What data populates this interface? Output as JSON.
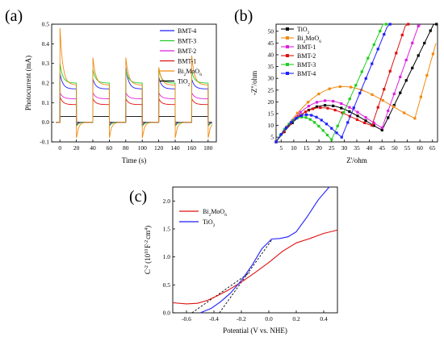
{
  "chart_data": [
    {
      "id": "a",
      "panel_label": "(a)",
      "type": "line",
      "xlabel": "Time (s)",
      "ylabel": "Photocurrent (mA)",
      "xlim": [
        -10,
        190
      ],
      "ylim": [
        -0.1,
        0.5
      ],
      "xticks": [
        0,
        20,
        40,
        60,
        80,
        100,
        120,
        140,
        160,
        180
      ],
      "yticks": [
        -0.1,
        0.0,
        0.1,
        0.2,
        0.3,
        0.4,
        0.5
      ],
      "ytick_labels": [
        "-0.1",
        "0.0",
        "0.1",
        "0.2",
        "0.3",
        "0.4",
        "0.5"
      ],
      "legend_position": "top-right",
      "on_intervals": [
        [
          0,
          20
        ],
        [
          40,
          60
        ],
        [
          80,
          100
        ],
        [
          120,
          140
        ],
        [
          160,
          180
        ]
      ],
      "series": [
        {
          "name": "BMT-4",
          "color": "#1f1fff",
          "steady": 0.17,
          "spike": [
            0.25,
            0.22,
            0.28,
            0.23,
            0.22
          ],
          "off_dip": -0.015
        },
        {
          "name": "BMT-3",
          "color": "#22cc22",
          "steady": 0.2,
          "spike": [
            0.3,
            0.27,
            0.27,
            0.27,
            0.26
          ],
          "off_dip": -0.02
        },
        {
          "name": "BMT-2",
          "color": "#dd22dd",
          "steady": 0.12,
          "spike": [
            0.15,
            0.15,
            0.15,
            0.15,
            0.15
          ],
          "off_dip": -0.01
        },
        {
          "name": "BMT-1",
          "color": "#dd1111",
          "steady": 0.09,
          "spike": [
            0.13,
            0.12,
            0.12,
            0.12,
            0.12
          ],
          "off_dip": -0.01
        },
        {
          "name": "Bi2MoO6",
          "legend_main": "Bi",
          "legend_sub1": "2",
          "legend_mid": "MoO",
          "legend_sub2": "6",
          "color": "#f08a12",
          "steady": 0.19,
          "spike": [
            0.48,
            0.33,
            0.33,
            0.28,
            0.34
          ],
          "off_dip": -0.08
        },
        {
          "name": "TiO2",
          "legend_main": "TiO",
          "legend_sub1": "2",
          "color": "#000000",
          "steady": 0.03,
          "spike": [
            0.03,
            0.03,
            0.03,
            0.03,
            0.03
          ],
          "off_dip": 0.0
        }
      ]
    },
    {
      "id": "b",
      "panel_label": "(b)",
      "type": "scatter",
      "xlabel": "Z'/ohm",
      "ylabel": "-Z''/ohm",
      "xlim": [
        3,
        67
      ],
      "ylim": [
        3,
        53
      ],
      "xticks": [
        5,
        10,
        15,
        20,
        25,
        30,
        35,
        40,
        45,
        50,
        55,
        60,
        65
      ],
      "yticks": [
        5,
        10,
        15,
        20,
        25,
        30,
        35,
        40,
        45,
        50
      ],
      "legend_position": "top-left",
      "series": [
        {
          "name": "TiO2",
          "legend_main": "TiO",
          "legend_sub1": "2",
          "color": "#000000",
          "marker": "square",
          "arc_start": 3,
          "arc_end": 45,
          "arc_peak": 17,
          "min_y": 8,
          "tail_slope": 2.2
        },
        {
          "name": "Bi2MoO6",
          "legend_main": "Bi",
          "legend_sub1": "2",
          "legend_mid": "MoO",
          "legend_sub2": "6",
          "color": "#f08a12",
          "marker": "square",
          "arc_start": 3,
          "arc_end": 58,
          "arc_peak": 25,
          "min_y": 13,
          "tail_slope": 3.8
        },
        {
          "name": "BMT-1",
          "color": "#dd22dd",
          "marker": "square",
          "arc_start": 3,
          "arc_end": 45,
          "arc_peak": 19,
          "min_y": 9,
          "tail_slope": 3.0
        },
        {
          "name": "BMT-2",
          "color": "#dd1111",
          "marker": "square",
          "arc_start": 3,
          "arc_end": 41,
          "arc_peak": 16,
          "min_y": 10,
          "tail_slope": 3.2
        },
        {
          "name": "BMT-3",
          "color": "#22cc22",
          "marker": "square",
          "arc_start": 3,
          "arc_end": 25,
          "arc_peak": 12,
          "min_y": 4,
          "tail_slope": 2.4
        },
        {
          "name": "BMT-4",
          "color": "#1f1fff",
          "marker": "square",
          "arc_start": 3,
          "arc_end": 29,
          "arc_peak": 13,
          "min_y": 5,
          "tail_slope": 2.6
        }
      ]
    },
    {
      "id": "c",
      "panel_label": "(c)",
      "type": "line",
      "xlabel": "Potential (V vs. NHE)",
      "ylabel_main": "C",
      "ylabel_sup1": "-2",
      "ylabel_mid": " (10",
      "ylabel_sup2": "10",
      "ylabel_mid2": "F",
      "ylabel_sup3": "-2",
      "ylabel_end": "cm",
      "ylabel_sup4": "4",
      "ylabel_close": ")",
      "xlim": [
        -0.7,
        0.5
      ],
      "ylim": [
        0.0,
        2.25
      ],
      "xticks": [
        -0.6,
        -0.4,
        -0.2,
        0.0,
        0.2,
        0.4
      ],
      "xtick_labels": [
        "-0.6",
        "-0.4",
        "-0.2",
        "0.0",
        "0.2",
        "0.4"
      ],
      "yticks": [
        0.0,
        0.5,
        1.0,
        1.5,
        2.0
      ],
      "ytick_labels": [
        "0.0",
        "0.5",
        "1.0",
        "1.5",
        "2.0"
      ],
      "legend_position": "top-left",
      "series": [
        {
          "name": "Bi2MoO6",
          "legend_main": "Bi",
          "legend_sub1": "2",
          "legend_mid": "MoO",
          "legend_sub2": "6",
          "color": "#dd1111",
          "x": [
            -0.7,
            -0.6,
            -0.52,
            -0.45,
            -0.38,
            -0.3,
            -0.2,
            -0.1,
            0.0,
            0.1,
            0.2,
            0.3,
            0.4,
            0.5
          ],
          "y": [
            0.18,
            0.16,
            0.17,
            0.22,
            0.3,
            0.4,
            0.55,
            0.72,
            0.9,
            1.1,
            1.25,
            1.33,
            1.42,
            1.48
          ]
        },
        {
          "name": "TiO2",
          "legend_main": "TiO",
          "legend_sub1": "2",
          "color": "#1f1fff",
          "x": [
            -0.5,
            -0.42,
            -0.35,
            -0.28,
            -0.2,
            -0.12,
            -0.05,
            0.02,
            0.08,
            0.14,
            0.2,
            0.28,
            0.36,
            0.44
          ],
          "y": [
            0.0,
            0.08,
            0.2,
            0.35,
            0.58,
            0.86,
            1.15,
            1.32,
            1.33,
            1.36,
            1.45,
            1.72,
            2.02,
            2.25
          ]
        }
      ],
      "tangents": [
        {
          "x": [
            -0.56,
            -0.14
          ],
          "y": [
            0.0,
            0.72
          ]
        },
        {
          "x": [
            -0.36,
            0.02
          ],
          "y": [
            0.0,
            1.3
          ]
        }
      ]
    }
  ]
}
